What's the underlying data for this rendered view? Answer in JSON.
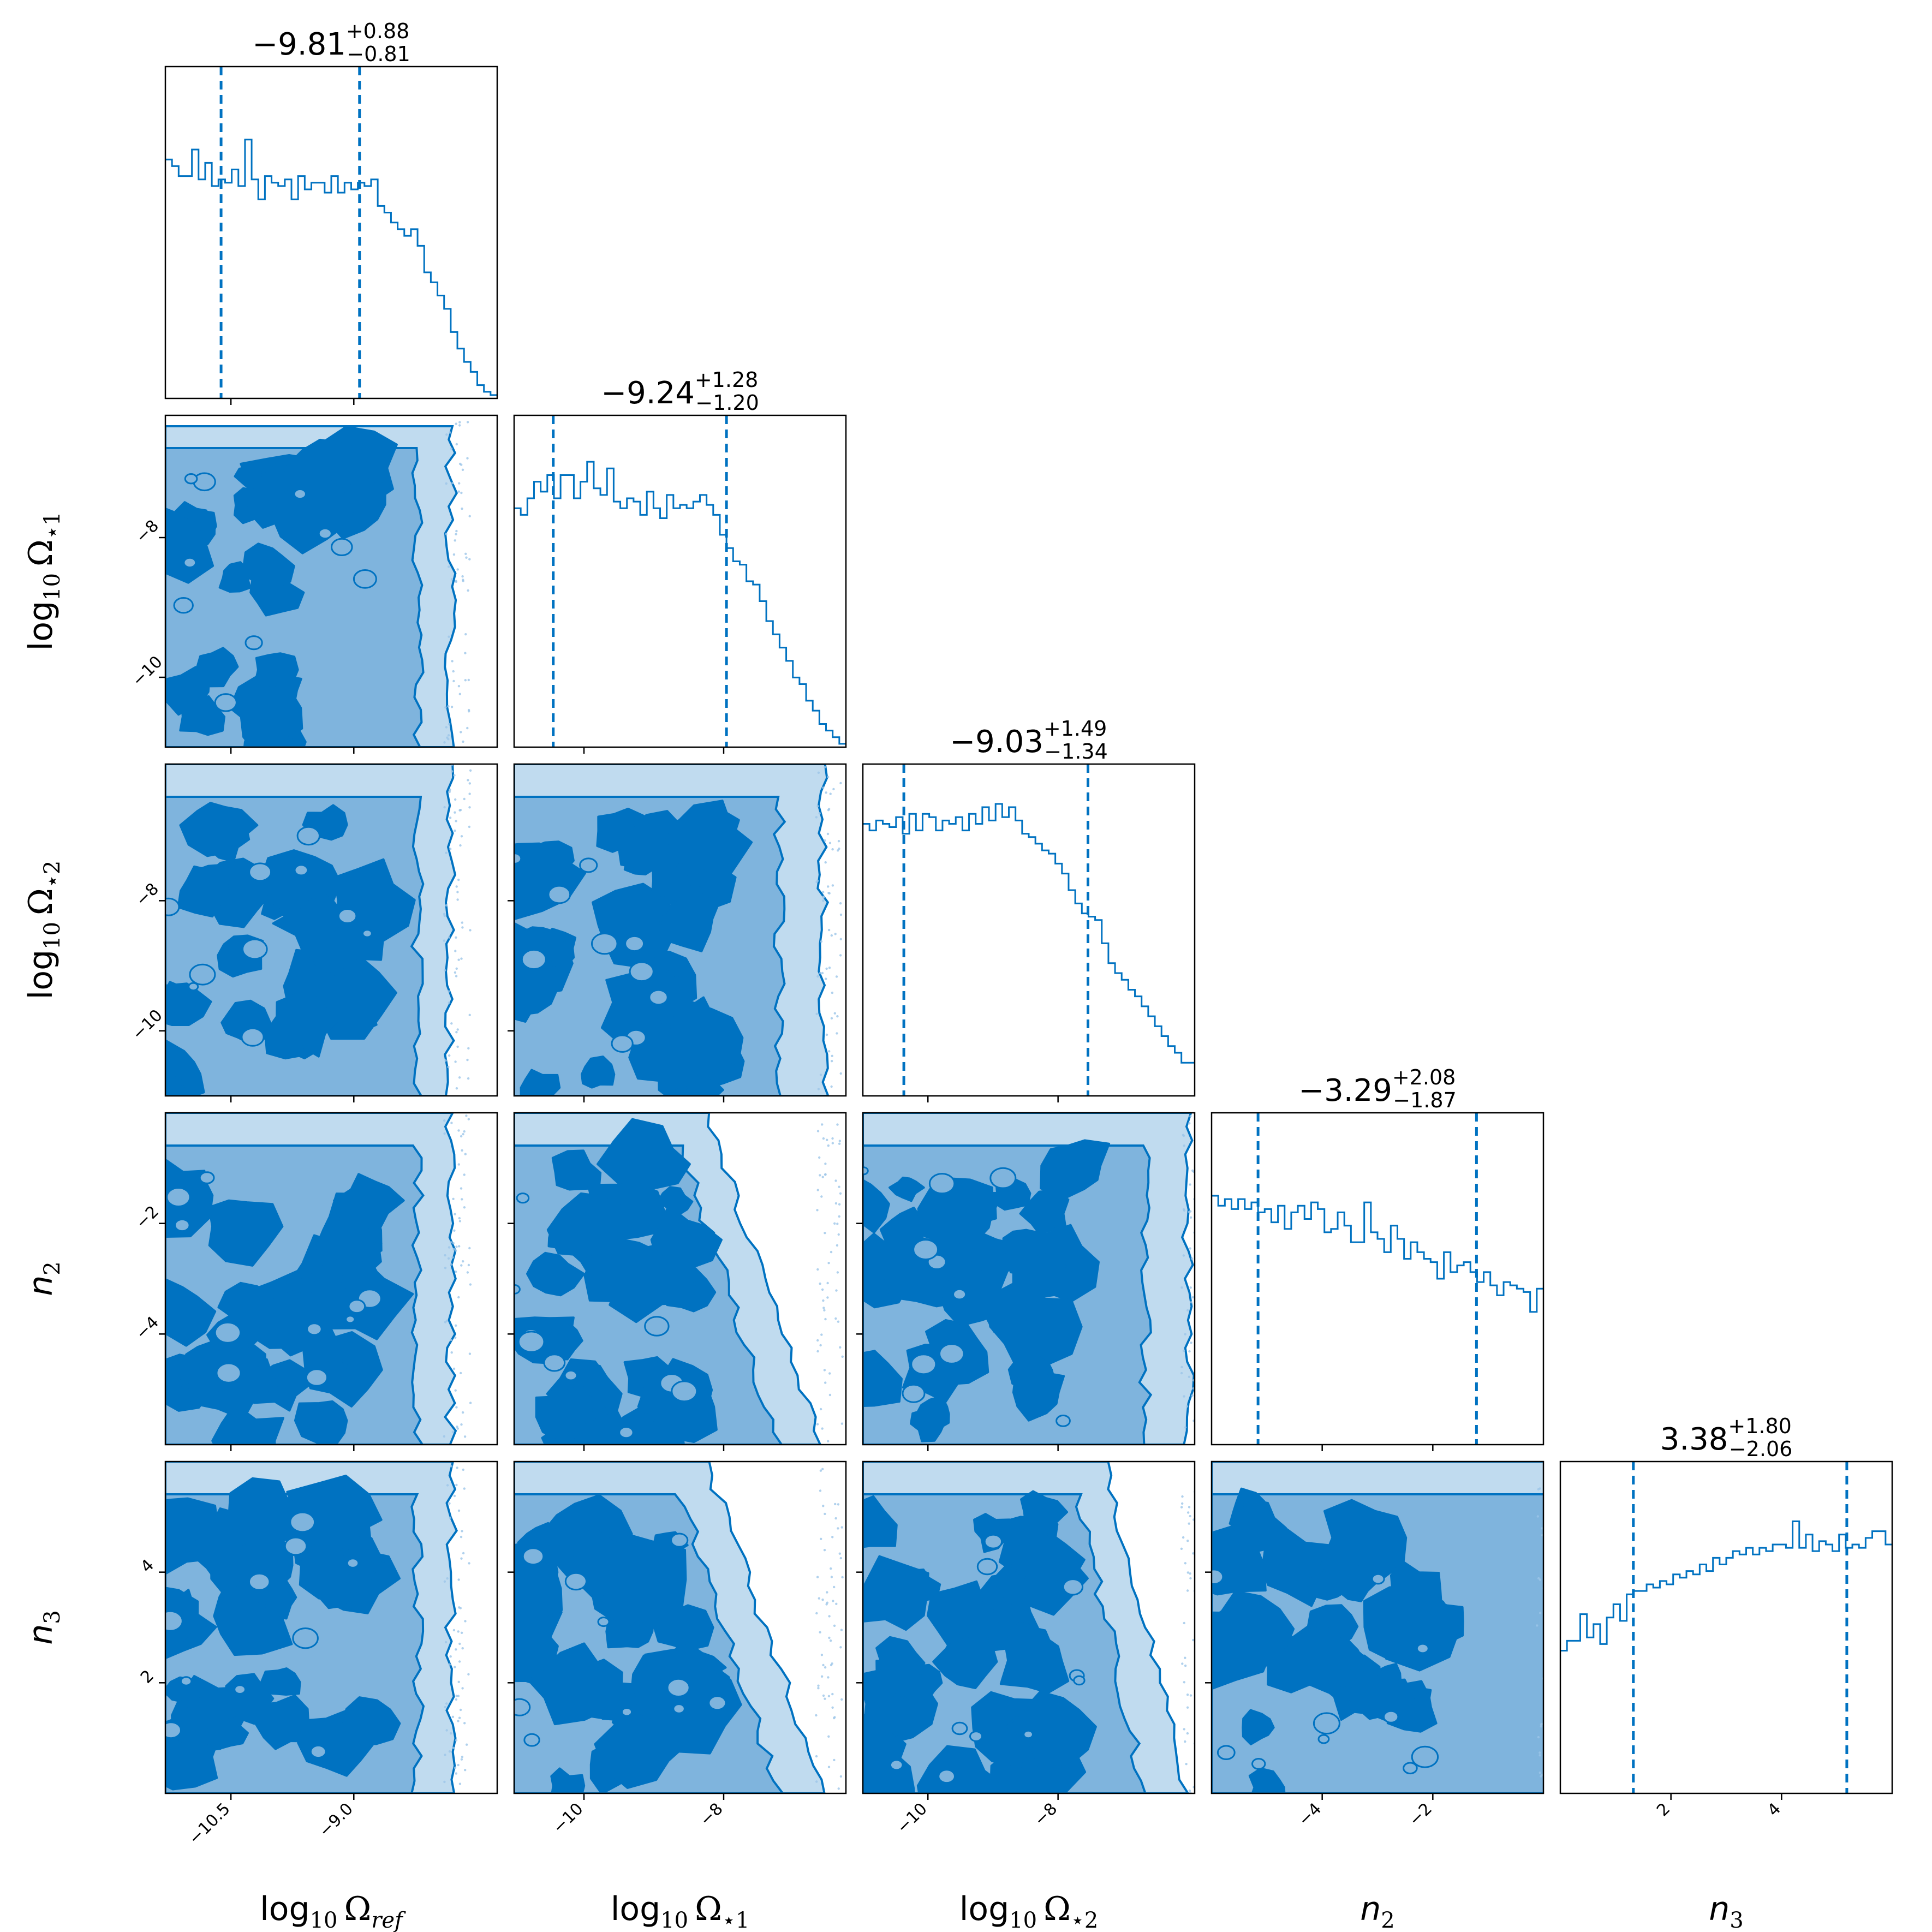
{
  "chart_data": {
    "type": "corner",
    "color": "#0072c1",
    "parameters": [
      {
        "key": "log_omega_ref",
        "label_main": "log",
        "label_base": "10",
        "label_sym": "Ω",
        "label_sub": "ref",
        "range": [
          -11.3,
          -7.25
        ],
        "ticks": [
          -10.5,
          -9.0
        ],
        "tick_labels": [
          "−10.5",
          "−9.0"
        ],
        "median": -9.81,
        "plus": "+0.88",
        "minus": "−0.81",
        "title_value": "−9.81",
        "quantiles": [
          -10.62,
          -8.93
        ]
      },
      {
        "key": "log_omega_star1",
        "label_main": "log",
        "label_base": "10",
        "label_sym": "Ω",
        "label_sub": "⋆1",
        "range": [
          -11.0,
          -6.25
        ],
        "ticks": [
          -10,
          -8
        ],
        "tick_labels": [
          "−10",
          "−8"
        ],
        "median": -9.24,
        "plus": "+1.28",
        "minus": "−1.20",
        "title_value": "−9.24",
        "quantiles": [
          -10.44,
          -7.96
        ]
      },
      {
        "key": "log_omega_star2",
        "label_main": "log",
        "label_base": "10",
        "label_sym": "Ω",
        "label_sub": "⋆2",
        "range": [
          -11.0,
          -5.9
        ],
        "ticks": [
          -10,
          -8
        ],
        "tick_labels": [
          "−10",
          "−8"
        ],
        "median": -9.03,
        "plus": "+1.49",
        "minus": "−1.34",
        "title_value": "−9.03",
        "quantiles": [
          -10.37,
          -7.54
        ]
      },
      {
        "key": "n2",
        "label_main": "n",
        "label_base": "",
        "label_sym": "",
        "label_sub": "2",
        "range": [
          -6.0,
          0.0
        ],
        "ticks": [
          -4,
          -2
        ],
        "tick_labels": [
          "−4",
          "−2"
        ],
        "median": -3.29,
        "plus": "+2.08",
        "minus": "−1.87",
        "title_value": "−3.29",
        "quantiles": [
          -5.16,
          -1.21
        ]
      },
      {
        "key": "n3",
        "label_main": "n",
        "label_base": "",
        "label_sym": "",
        "label_sub": "3",
        "range": [
          0.0,
          6.0
        ],
        "ticks": [
          2,
          4
        ],
        "tick_labels": [
          "2",
          "4"
        ],
        "median": 3.38,
        "plus": "+1.80",
        "minus": "−2.06",
        "title_value": "3.38",
        "quantiles": [
          1.32,
          5.18
        ]
      }
    ],
    "histograms": [
      {
        "param": "log_omega_ref",
        "heights": [
          0.72,
          0.7,
          0.67,
          0.67,
          0.75,
          0.66,
          0.71,
          0.64,
          0.66,
          0.65,
          0.69,
          0.64,
          0.78,
          0.66,
          0.6,
          0.67,
          0.65,
          0.64,
          0.66,
          0.6,
          0.67,
          0.63,
          0.65,
          0.65,
          0.62,
          0.67,
          0.62,
          0.65,
          0.63,
          0.65,
          0.64,
          0.66,
          0.58,
          0.56,
          0.53,
          0.51,
          0.49,
          0.51,
          0.46,
          0.38,
          0.35,
          0.31,
          0.27,
          0.2,
          0.15,
          0.11,
          0.08,
          0.04,
          0.02,
          0.01
        ]
      },
      {
        "param": "log_omega_star1",
        "heights": [
          0.72,
          0.7,
          0.75,
          0.8,
          0.77,
          0.82,
          0.75,
          0.82,
          0.82,
          0.75,
          0.8,
          0.86,
          0.78,
          0.76,
          0.84,
          0.74,
          0.72,
          0.75,
          0.74,
          0.7,
          0.77,
          0.72,
          0.69,
          0.76,
          0.72,
          0.73,
          0.72,
          0.74,
          0.76,
          0.73,
          0.7,
          0.64,
          0.6,
          0.56,
          0.55,
          0.5,
          0.49,
          0.44,
          0.38,
          0.34,
          0.3,
          0.26,
          0.21,
          0.19,
          0.14,
          0.11,
          0.07,
          0.05,
          0.03,
          0.01
        ]
      },
      {
        "param": "log_omega_star2",
        "heights": [
          0.82,
          0.8,
          0.83,
          0.82,
          0.81,
          0.84,
          0.79,
          0.85,
          0.8,
          0.85,
          0.84,
          0.8,
          0.83,
          0.82,
          0.84,
          0.8,
          0.85,
          0.82,
          0.87,
          0.83,
          0.88,
          0.84,
          0.87,
          0.83,
          0.79,
          0.78,
          0.76,
          0.74,
          0.73,
          0.7,
          0.67,
          0.62,
          0.58,
          0.55,
          0.54,
          0.53,
          0.46,
          0.4,
          0.37,
          0.35,
          0.32,
          0.3,
          0.27,
          0.24,
          0.21,
          0.18,
          0.15,
          0.13,
          0.1,
          0.1
        ]
      },
      {
        "param": "n2",
        "heights": [
          0.75,
          0.72,
          0.74,
          0.71,
          0.74,
          0.71,
          0.73,
          0.7,
          0.71,
          0.67,
          0.72,
          0.65,
          0.7,
          0.72,
          0.68,
          0.73,
          0.71,
          0.64,
          0.65,
          0.7,
          0.66,
          0.61,
          0.61,
          0.73,
          0.64,
          0.62,
          0.58,
          0.66,
          0.62,
          0.56,
          0.61,
          0.58,
          0.56,
          0.55,
          0.5,
          0.58,
          0.52,
          0.54,
          0.55,
          0.52,
          0.49,
          0.52,
          0.48,
          0.45,
          0.49,
          0.48,
          0.47,
          0.46,
          0.4,
          0.47
        ]
      },
      {
        "param": "n3",
        "heights": [
          0.43,
          0.46,
          0.46,
          0.54,
          0.47,
          0.51,
          0.45,
          0.53,
          0.57,
          0.52,
          0.6,
          0.61,
          0.61,
          0.63,
          0.62,
          0.64,
          0.63,
          0.66,
          0.65,
          0.67,
          0.66,
          0.69,
          0.67,
          0.71,
          0.69,
          0.71,
          0.73,
          0.72,
          0.74,
          0.72,
          0.74,
          0.73,
          0.75,
          0.75,
          0.74,
          0.82,
          0.74,
          0.78,
          0.73,
          0.76,
          0.75,
          0.73,
          0.78,
          0.74,
          0.75,
          0.74,
          0.77,
          0.79,
          0.79,
          0.75
        ]
      }
    ],
    "contour_levels": [
      "1-sigma",
      "2-sigma",
      "3-sigma"
    ],
    "fill_colors": [
      "#0072c1",
      "#7fb4dd",
      "#c0dbef"
    ],
    "layout": "lower-triangle 5x5"
  }
}
